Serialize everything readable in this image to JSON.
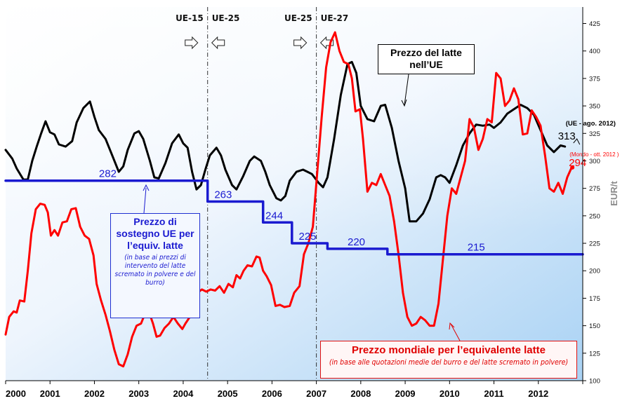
{
  "chart_data": {
    "type": "line",
    "ylabel": "EUR/t",
    "ylim": [
      100,
      440
    ],
    "yticks": [
      100,
      125,
      150,
      175,
      200,
      225,
      250,
      275,
      300,
      325,
      350,
      375,
      400,
      425
    ],
    "xlim": [
      2000,
      2013.0
    ],
    "xticks": [
      "2000",
      "2001",
      "2002",
      "2003",
      "2004",
      "2005",
      "2006",
      "2007",
      "2008",
      "2009",
      "2010",
      "2011",
      "2012"
    ],
    "background": "gradient white-to-light-blue",
    "grid": false,
    "series": [
      {
        "color": "#000000",
        "points": [
          [
            2000.0,
            310
          ],
          [
            2000.15,
            302
          ],
          [
            2000.25,
            293
          ],
          [
            2000.4,
            283
          ],
          [
            2000.5,
            283
          ],
          [
            2000.6,
            300
          ],
          [
            2000.7,
            313
          ],
          [
            2000.8,
            325
          ],
          [
            2000.9,
            336
          ],
          [
            2001.0,
            326
          ],
          [
            2001.1,
            324
          ],
          [
            2001.2,
            315
          ],
          [
            2001.35,
            313
          ],
          [
            2001.5,
            318
          ],
          [
            2001.6,
            335
          ],
          [
            2001.75,
            348
          ],
          [
            2001.9,
            354
          ],
          [
            2002.0,
            340
          ],
          [
            2002.1,
            328
          ],
          [
            2002.25,
            320
          ],
          [
            2002.4,
            305
          ],
          [
            2002.55,
            290
          ],
          [
            2002.65,
            295
          ],
          [
            2002.75,
            310
          ],
          [
            2002.9,
            325
          ],
          [
            2003.0,
            327
          ],
          [
            2003.1,
            320
          ],
          [
            2003.25,
            300
          ],
          [
            2003.35,
            285
          ],
          [
            2003.45,
            284
          ],
          [
            2003.6,
            298
          ],
          [
            2003.75,
            316
          ],
          [
            2003.9,
            324
          ],
          [
            2004.0,
            316
          ],
          [
            2004.1,
            312
          ],
          [
            2004.2,
            290
          ],
          [
            2004.3,
            274
          ],
          [
            2004.4,
            278
          ],
          [
            2004.5,
            292
          ],
          [
            2004.6,
            305
          ],
          [
            2004.75,
            312
          ],
          [
            2004.85,
            305
          ],
          [
            2004.95,
            292
          ],
          [
            2005.1,
            278
          ],
          [
            2005.2,
            274
          ],
          [
            2005.35,
            286
          ],
          [
            2005.5,
            300
          ],
          [
            2005.6,
            304
          ],
          [
            2005.75,
            300
          ],
          [
            2005.85,
            290
          ],
          [
            2005.95,
            278
          ],
          [
            2006.1,
            266
          ],
          [
            2006.2,
            264
          ],
          [
            2006.3,
            268
          ],
          [
            2006.4,
            282
          ],
          [
            2006.55,
            290
          ],
          [
            2006.7,
            292
          ],
          [
            2006.8,
            290
          ],
          [
            2006.9,
            288
          ],
          [
            2007.05,
            280
          ],
          [
            2007.15,
            276
          ],
          [
            2007.25,
            285
          ],
          [
            2007.4,
            320
          ],
          [
            2007.55,
            360
          ],
          [
            2007.7,
            388
          ],
          [
            2007.8,
            390
          ],
          [
            2007.9,
            380
          ],
          [
            2008.0,
            350
          ],
          [
            2008.15,
            338
          ],
          [
            2008.3,
            336
          ],
          [
            2008.45,
            350
          ],
          [
            2008.55,
            351
          ],
          [
            2008.7,
            330
          ],
          [
            2008.85,
            300
          ],
          [
            2009.0,
            275
          ],
          [
            2009.1,
            245
          ],
          [
            2009.25,
            245
          ],
          [
            2009.4,
            252
          ],
          [
            2009.55,
            265
          ],
          [
            2009.7,
            285
          ],
          [
            2009.8,
            287
          ],
          [
            2009.9,
            285
          ],
          [
            2010.0,
            280
          ],
          [
            2010.15,
            296
          ],
          [
            2010.3,
            314
          ],
          [
            2010.45,
            325
          ],
          [
            2010.6,
            333
          ],
          [
            2010.75,
            332
          ],
          [
            2010.9,
            333
          ],
          [
            2011.0,
            330
          ],
          [
            2011.15,
            335
          ],
          [
            2011.3,
            343
          ],
          [
            2011.45,
            347
          ],
          [
            2011.6,
            351
          ],
          [
            2011.75,
            348
          ],
          [
            2011.9,
            342
          ],
          [
            2012.05,
            328
          ],
          [
            2012.2,
            314
          ],
          [
            2012.35,
            308
          ],
          [
            2012.5,
            314
          ],
          [
            2012.6,
            313
          ]
        ]
      },
      {
        "color": "#ff0000",
        "points": [
          [
            2000.0,
            142
          ],
          [
            2000.08,
            158
          ],
          [
            2000.18,
            163
          ],
          [
            2000.25,
            162
          ],
          [
            2000.32,
            173
          ],
          [
            2000.42,
            172
          ],
          [
            2000.5,
            200
          ],
          [
            2000.58,
            234
          ],
          [
            2000.68,
            256
          ],
          [
            2000.78,
            261
          ],
          [
            2000.88,
            260
          ],
          [
            2000.95,
            253
          ],
          [
            2001.02,
            232
          ],
          [
            2001.1,
            237
          ],
          [
            2001.18,
            232
          ],
          [
            2001.28,
            244
          ],
          [
            2001.38,
            245
          ],
          [
            2001.48,
            256
          ],
          [
            2001.58,
            257
          ],
          [
            2001.68,
            240
          ],
          [
            2001.78,
            232
          ],
          [
            2001.88,
            229
          ],
          [
            2001.98,
            214
          ],
          [
            2002.05,
            188
          ],
          [
            2002.15,
            173
          ],
          [
            2002.25,
            160
          ],
          [
            2002.35,
            145
          ],
          [
            2002.45,
            128
          ],
          [
            2002.55,
            115
          ],
          [
            2002.65,
            113
          ],
          [
            2002.75,
            124
          ],
          [
            2002.85,
            140
          ],
          [
            2002.95,
            150
          ],
          [
            2003.05,
            152
          ],
          [
            2003.15,
            162
          ],
          [
            2003.25,
            160
          ],
          [
            2003.32,
            152
          ],
          [
            2003.4,
            140
          ],
          [
            2003.48,
            141
          ],
          [
            2003.58,
            148
          ],
          [
            2003.68,
            152
          ],
          [
            2003.78,
            158
          ],
          [
            2003.88,
            152
          ],
          [
            2003.98,
            147
          ],
          [
            2004.05,
            152
          ],
          [
            2004.15,
            158
          ],
          [
            2004.25,
            165
          ],
          [
            2004.32,
            180
          ],
          [
            2004.42,
            183
          ],
          [
            2004.52,
            181
          ],
          [
            2004.62,
            183
          ],
          [
            2004.72,
            182
          ],
          [
            2004.82,
            186
          ],
          [
            2004.92,
            180
          ],
          [
            2005.02,
            188
          ],
          [
            2005.12,
            185
          ],
          [
            2005.2,
            196
          ],
          [
            2005.28,
            193
          ],
          [
            2005.36,
            200
          ],
          [
            2005.45,
            205
          ],
          [
            2005.55,
            204
          ],
          [
            2005.65,
            213
          ],
          [
            2005.72,
            212
          ],
          [
            2005.8,
            200
          ],
          [
            2005.88,
            195
          ],
          [
            2005.98,
            187
          ],
          [
            2006.08,
            168
          ],
          [
            2006.18,
            169
          ],
          [
            2006.28,
            167
          ],
          [
            2006.4,
            168
          ],
          [
            2006.5,
            180
          ],
          [
            2006.62,
            186
          ],
          [
            2006.72,
            215
          ],
          [
            2006.82,
            225
          ],
          [
            2006.92,
            240
          ],
          [
            2007.02,
            290
          ],
          [
            2007.12,
            340
          ],
          [
            2007.22,
            385
          ],
          [
            2007.32,
            408
          ],
          [
            2007.42,
            417
          ],
          [
            2007.52,
            400
          ],
          [
            2007.62,
            390
          ],
          [
            2007.72,
            388
          ],
          [
            2007.8,
            375
          ],
          [
            2007.88,
            345
          ],
          [
            2007.98,
            347
          ],
          [
            2008.05,
            320
          ],
          [
            2008.15,
            272
          ],
          [
            2008.25,
            280
          ],
          [
            2008.35,
            278
          ],
          [
            2008.45,
            288
          ],
          [
            2008.55,
            278
          ],
          [
            2008.65,
            268
          ],
          [
            2008.75,
            245
          ],
          [
            2008.85,
            215
          ],
          [
            2008.95,
            180
          ],
          [
            2009.05,
            158
          ],
          [
            2009.15,
            150
          ],
          [
            2009.25,
            152
          ],
          [
            2009.35,
            158
          ],
          [
            2009.45,
            155
          ],
          [
            2009.55,
            150
          ],
          [
            2009.65,
            150
          ],
          [
            2009.75,
            170
          ],
          [
            2009.85,
            210
          ],
          [
            2009.95,
            250
          ],
          [
            2010.05,
            275
          ],
          [
            2010.15,
            270
          ],
          [
            2010.25,
            285
          ],
          [
            2010.35,
            300
          ],
          [
            2010.45,
            338
          ],
          [
            2010.55,
            330
          ],
          [
            2010.65,
            310
          ],
          [
            2010.75,
            320
          ],
          [
            2010.85,
            338
          ],
          [
            2010.95,
            335
          ],
          [
            2011.05,
            380
          ],
          [
            2011.15,
            375
          ],
          [
            2011.25,
            350
          ],
          [
            2011.35,
            355
          ],
          [
            2011.45,
            366
          ],
          [
            2011.55,
            356
          ],
          [
            2011.65,
            324
          ],
          [
            2011.75,
            325
          ],
          [
            2011.85,
            346
          ],
          [
            2011.95,
            340
          ],
          [
            2012.05,
            332
          ],
          [
            2012.15,
            305
          ],
          [
            2012.25,
            275
          ],
          [
            2012.35,
            272
          ],
          [
            2012.45,
            280
          ],
          [
            2012.55,
            270
          ],
          [
            2012.65,
            285
          ],
          [
            2012.75,
            294
          ]
        ]
      },
      {
        "color": "#1a1ad0",
        "points": [
          [
            2000.0,
            282
          ],
          [
            2004.55,
            282
          ],
          [
            2004.55,
            263
          ],
          [
            2005.8,
            263
          ],
          [
            2005.8,
            244
          ],
          [
            2006.45,
            244
          ],
          [
            2006.45,
            225
          ],
          [
            2007.25,
            225
          ],
          [
            2007.25,
            220
          ],
          [
            2008.6,
            220
          ],
          [
            2008.6,
            215
          ],
          [
            2013.0,
            215
          ]
        ]
      }
    ],
    "step_labels": [
      {
        "text": "282",
        "x": 2002.3,
        "y": 282
      },
      {
        "text": "263",
        "x": 2004.9,
        "y": 263
      },
      {
        "text": "244",
        "x": 2006.05,
        "y": 244
      },
      {
        "text": "225",
        "x": 2006.8,
        "y": 225
      },
      {
        "text": "220",
        "x": 2007.9,
        "y": 220
      },
      {
        "text": "215",
        "x": 2010.6,
        "y": 215
      }
    ],
    "vlines": [
      {
        "x": 2004.55,
        "left_label": "UE-15",
        "right_label": "UE-25"
      },
      {
        "x": 2007.0,
        "left_label": "UE-25",
        "right_label": "UE-27"
      }
    ],
    "end_labels": [
      {
        "text": "313",
        "note": "(UE - ago. 2012)",
        "color": "#000000"
      },
      {
        "text": "294",
        "note": "(Mondo - ott. 2012 )",
        "color": "#ff0000"
      }
    ]
  },
  "annotations": {
    "blue_box": {
      "title": "Prezzo di sostegno UE per l’equiv. latte",
      "subtitle": "(in base ai prezzi di intervento del latte scremato in polvere e del burro)"
    },
    "red_box": {
      "title": "Prezzo mondiale per l’equivalente latte",
      "subtitle": "(in base alle quotazioni medie del burro e del latte scremato in polvere)"
    },
    "black_box": {
      "title": "Prezzo del latte nell’UE"
    }
  }
}
